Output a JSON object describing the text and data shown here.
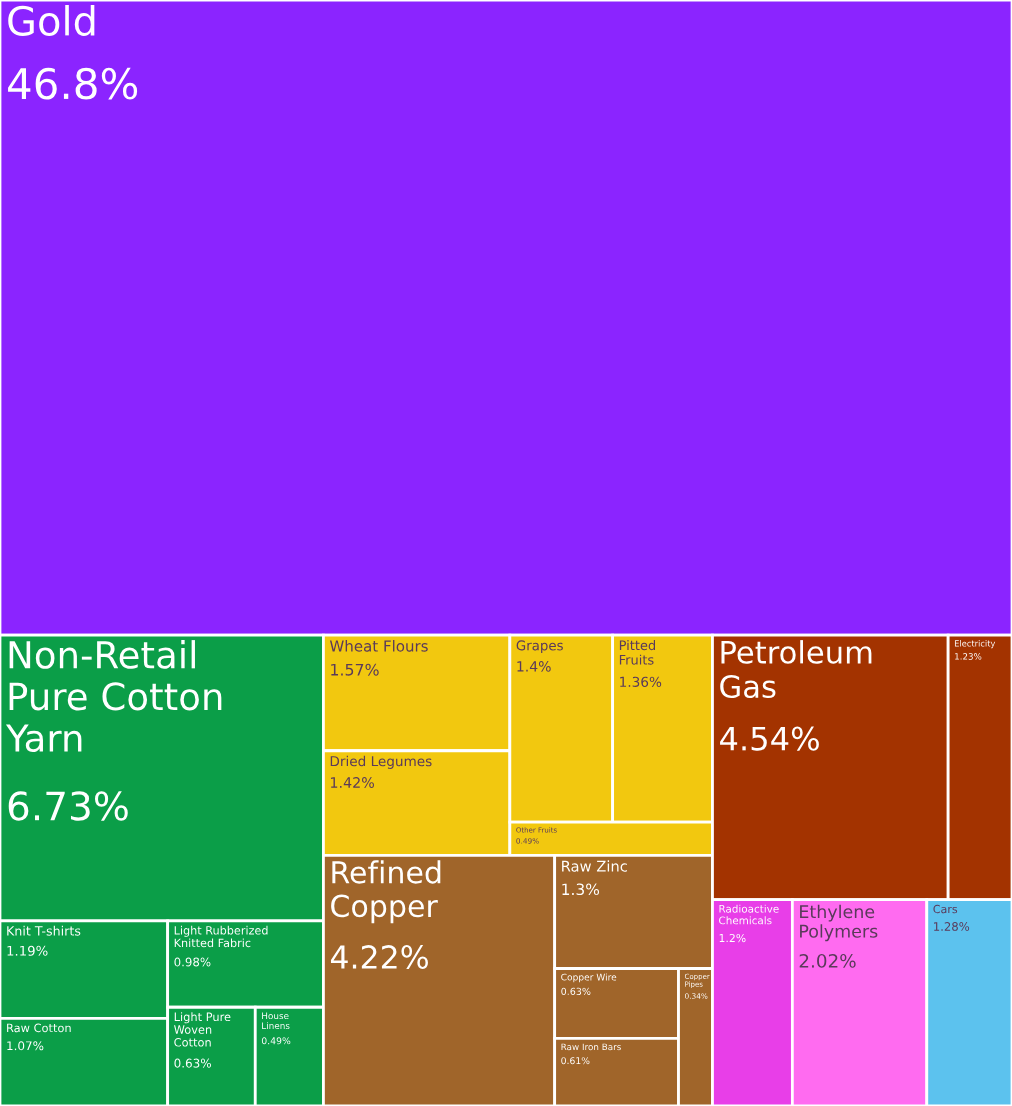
{
  "chart_data": {
    "type": "other",
    "categories": [
      "Gold",
      "Non-Retail Pure Cotton Yarn",
      "Knit T-shirts",
      "Raw Cotton",
      "Light Rubberized Knitted Fabric",
      "Light Pure Woven Cotton",
      "House Linens",
      "Wheat Flours",
      "Dried Legumes",
      "Grapes",
      "Pitted Fruits",
      "Other Fruits",
      "Refined Copper",
      "Raw Zinc",
      "Copper Wire",
      "Raw Iron Bars",
      "Copper Pipes",
      "Petroleum Gas",
      "Electricity",
      "Radioactive Chemicals",
      "Ethylene Polymers",
      "Cars"
    ],
    "values": [
      46.8,
      6.73,
      1.19,
      1.07,
      0.98,
      0.63,
      0.49,
      1.57,
      1.42,
      1.4,
      1.36,
      0.49,
      4.22,
      1.3,
      0.63,
      0.61,
      0.34,
      4.54,
      1.23,
      1.2,
      2.02,
      1.28
    ],
    "value_labels": [
      "46.8%",
      "6.73%",
      "1.19%",
      "1.07%",
      "0.98%",
      "0.63%",
      "0.49%",
      "1.57%",
      "1.42%",
      "1.4%",
      "1.36%",
      "0.49%",
      "4.22%",
      "1.3%",
      "0.63%",
      "0.61%",
      "0.34%",
      "4.54%",
      "1.23%",
      "1.2%",
      "2.02%",
      "1.28%"
    ],
    "colors": [
      "#8b24ff",
      "#0b9e48",
      "#0b9e48",
      "#0b9e48",
      "#0b9e48",
      "#0b9e48",
      "#0b9e48",
      "#f2c80f",
      "#f2c80f",
      "#f2c80f",
      "#f2c80f",
      "#f2c80f",
      "#a0652a",
      "#a0652a",
      "#a0652a",
      "#a0652a",
      "#a0652a",
      "#a33300",
      "#a33300",
      "#e83ee8",
      "#ff6bf0",
      "#5cc2ee"
    ]
  }
}
